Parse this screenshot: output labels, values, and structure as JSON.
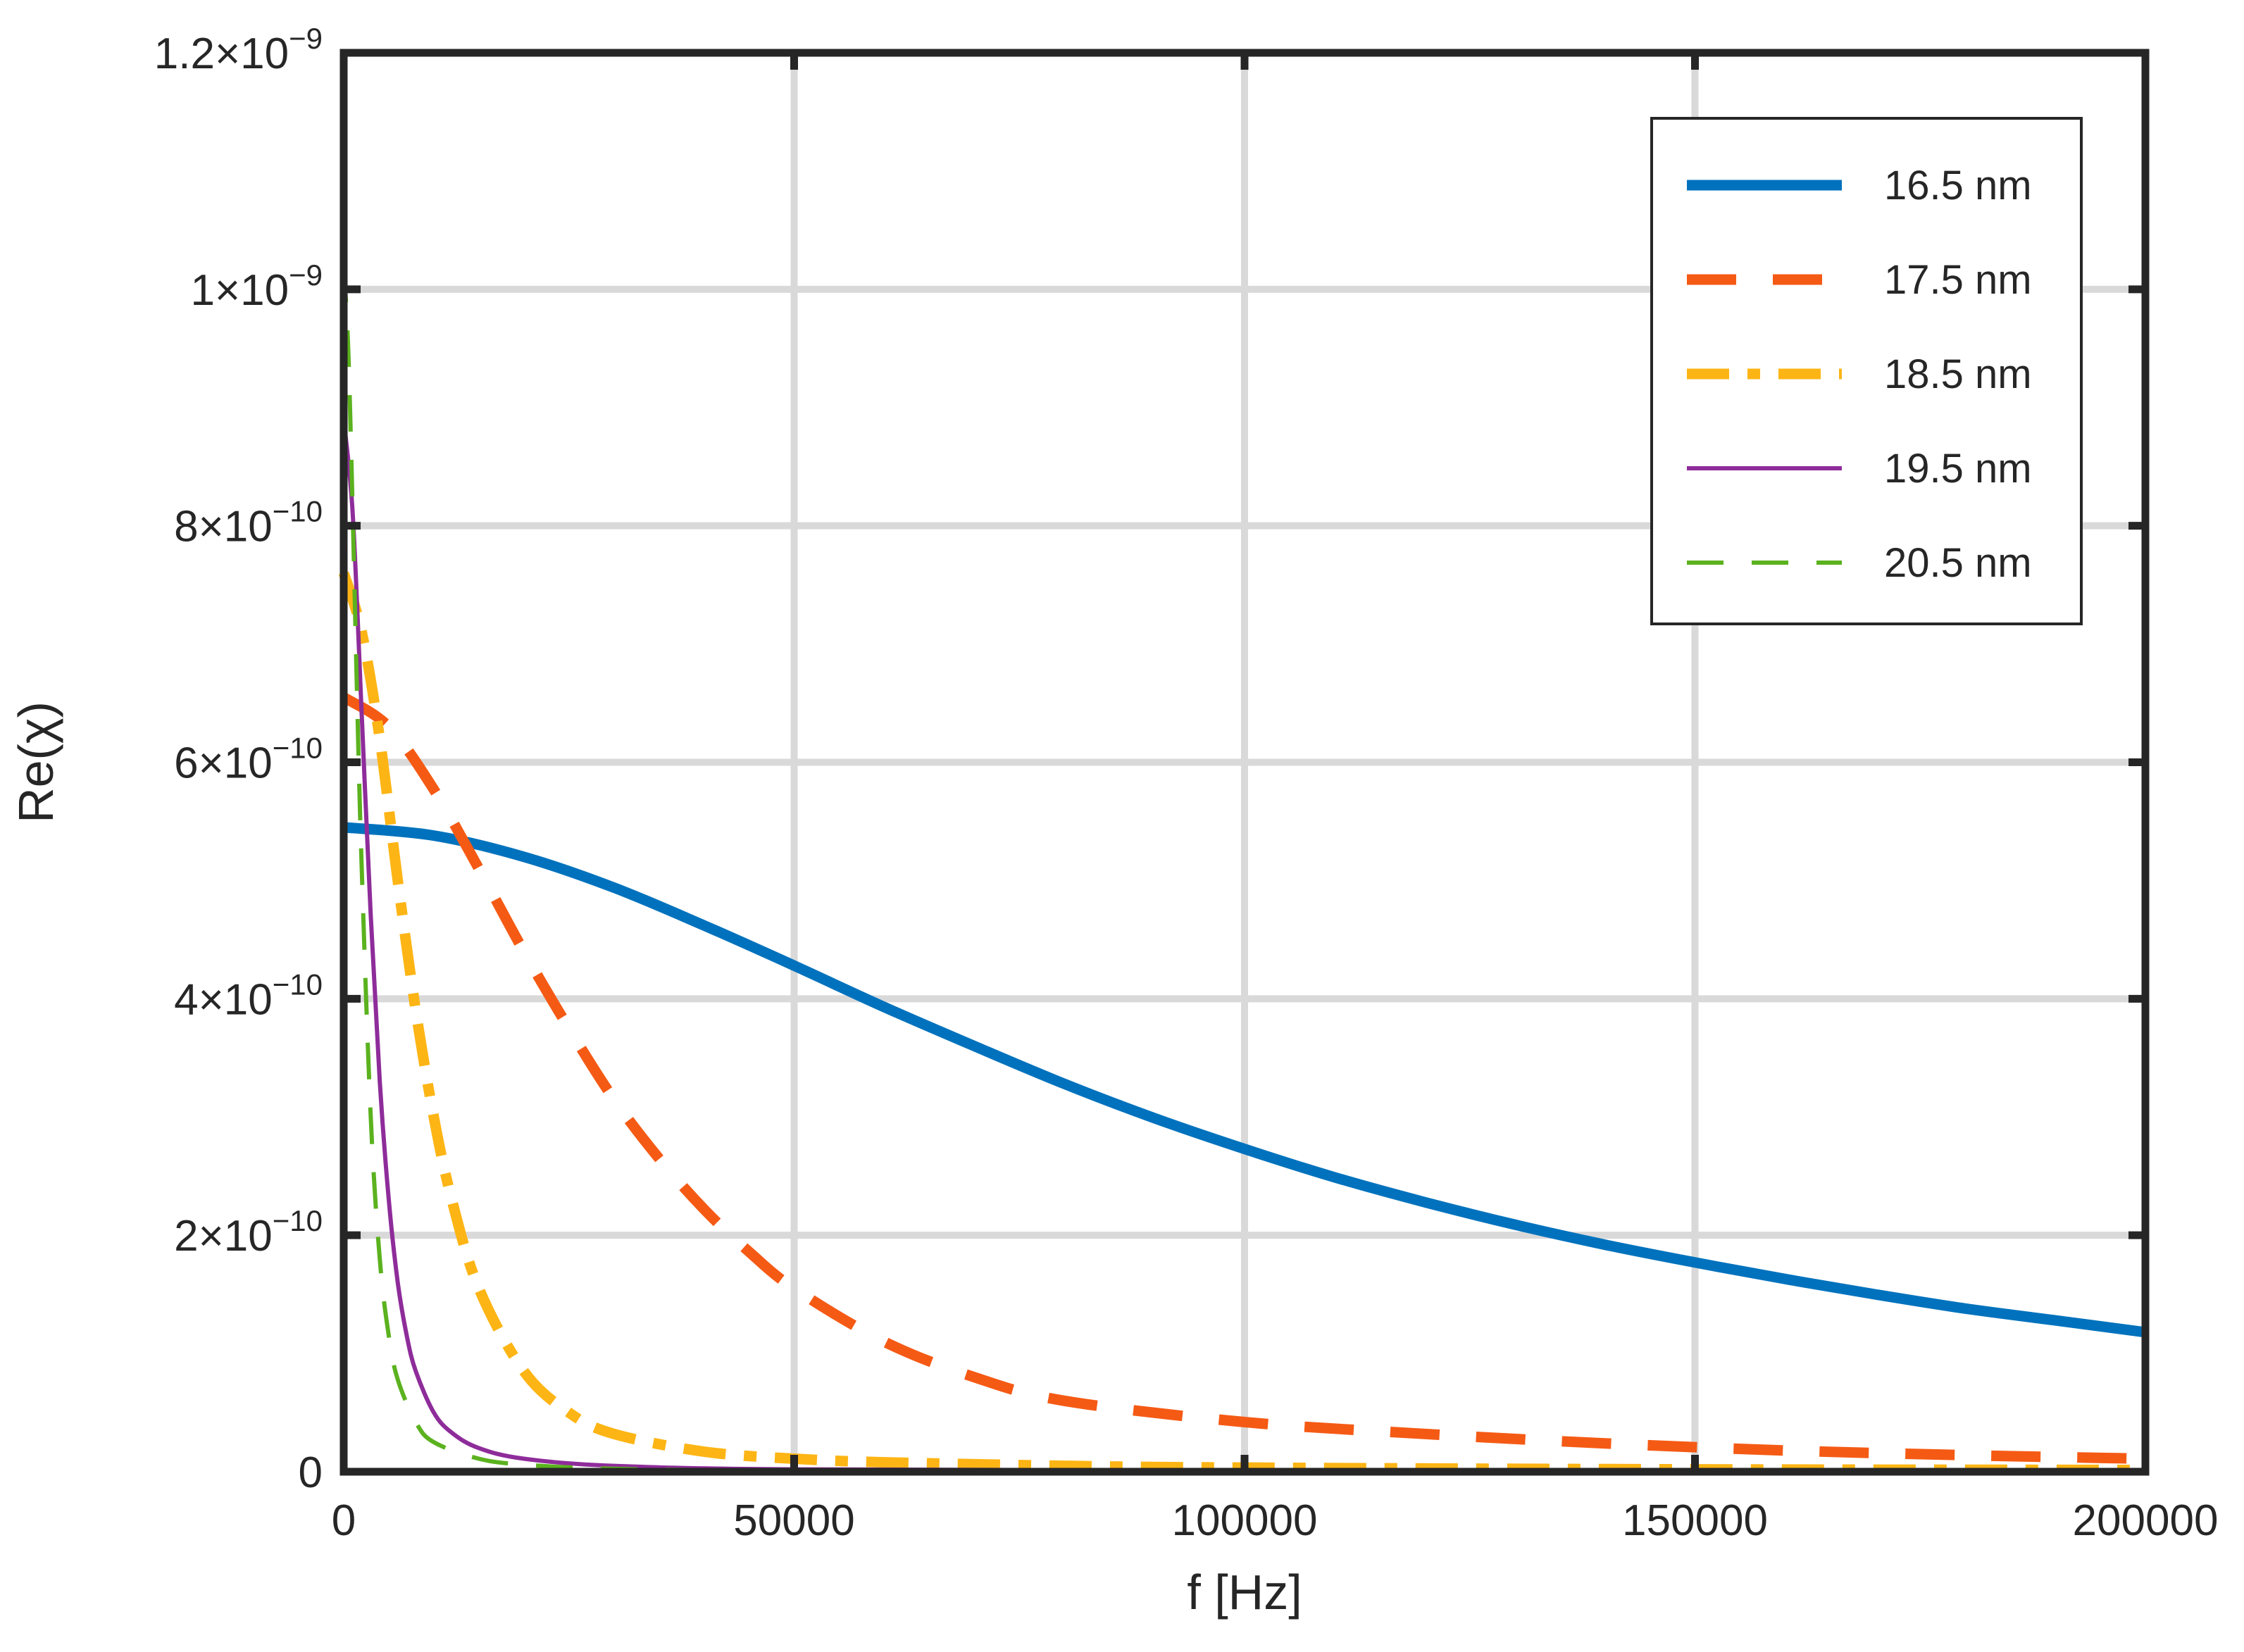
{
  "chart_data": {
    "type": "line",
    "title": "",
    "xlabel": "f [Hz]",
    "ylabel": "Re(χ)",
    "xlim": [
      0,
      200000
    ],
    "ylim": [
      0,
      1.2e-09
    ],
    "grid": true,
    "legend_position": "top-right",
    "x_ticks": [
      {
        "value": 0,
        "label": "0"
      },
      {
        "value": 50000,
        "label": "50000"
      },
      {
        "value": 100000,
        "label": "100000"
      },
      {
        "value": 150000,
        "label": "150000"
      },
      {
        "value": 200000,
        "label": "200000"
      }
    ],
    "y_ticks": [
      {
        "value": 0,
        "mantissa": "0",
        "exponent": ""
      },
      {
        "value": 2e-10,
        "mantissa": "2×10",
        "exponent": "−10"
      },
      {
        "value": 4e-10,
        "mantissa": "4×10",
        "exponent": "−10"
      },
      {
        "value": 6e-10,
        "mantissa": "6×10",
        "exponent": "−10"
      },
      {
        "value": 8e-10,
        "mantissa": "8×10",
        "exponent": "−10"
      },
      {
        "value": 1e-09,
        "mantissa": "1×10",
        "exponent": "−9"
      },
      {
        "value": 1.2e-09,
        "mantissa": "1.2×10",
        "exponent": "−9"
      }
    ],
    "series": [
      {
        "name": "16.5 nm",
        "color": "#0072BD",
        "dash": "solid",
        "weight": "thick",
        "x": [
          0,
          10000,
          20000,
          30000,
          40000,
          50000,
          60000,
          70000,
          80000,
          90000,
          100000,
          110000,
          120000,
          130000,
          140000,
          150000,
          160000,
          170000,
          180000,
          190000,
          200000
        ],
        "y": [
          5.45e-10,
          5.38e-10,
          5.2e-10,
          4.94e-10,
          4.62e-10,
          4.28e-10,
          3.93e-10,
          3.6e-10,
          3.28e-10,
          2.99e-10,
          2.73e-10,
          2.49e-10,
          2.28e-10,
          2.09e-10,
          1.92e-10,
          1.77e-10,
          1.63e-10,
          1.5e-10,
          1.38e-10,
          1.28e-10,
          1.18e-10
        ]
      },
      {
        "name": "17.5 nm",
        "color": "#F55A14",
        "dash": "dashed",
        "weight": "thick",
        "x": [
          0,
          5000,
          10000,
          15000,
          20000,
          25000,
          30000,
          35000,
          40000,
          45000,
          50000,
          60000,
          70000,
          80000,
          100000,
          120000,
          140000,
          160000,
          180000,
          200000
        ],
        "y": [
          6.55e-10,
          6.3e-10,
          5.77e-10,
          5.1e-10,
          4.4e-10,
          3.75e-10,
          3.15e-10,
          2.65e-10,
          2.22e-10,
          1.86e-10,
          1.55e-10,
          1.1e-10,
          8e-11,
          6e-11,
          4.2e-11,
          3.2e-11,
          2.4e-11,
          1.8e-11,
          1.4e-11,
          1.1e-11
        ]
      },
      {
        "name": "18.5 nm",
        "color": "#FDB515",
        "dash": "dashdot",
        "weight": "thick",
        "x": [
          0,
          2000,
          4000,
          6000,
          8000,
          10000,
          12000,
          15000,
          20000,
          25000,
          30000,
          40000,
          50000,
          60000,
          80000,
          100000,
          150000,
          200000
        ],
        "y": [
          7.6e-10,
          7.1e-10,
          6.2e-10,
          5e-10,
          3.9e-10,
          3e-10,
          2.3e-10,
          1.55e-10,
          8.5e-11,
          5e-11,
          3.2e-11,
          1.7e-11,
          1.1e-11,
          8e-12,
          5e-12,
          3.5e-12,
          2e-12,
          1.5e-12
        ]
      },
      {
        "name": "19.5 nm",
        "color": "#8E2C9A",
        "dash": "solid",
        "weight": "thin",
        "x": [
          0,
          1000,
          2000,
          3000,
          4000,
          5000,
          6000,
          7000,
          8000,
          10000,
          12000,
          15000,
          20000,
          30000,
          50000,
          100000,
          200000
        ],
        "y": [
          8.9e-10,
          8.1e-10,
          6.4e-10,
          4.7e-10,
          3.3e-10,
          2.3e-10,
          1.6e-10,
          1.15e-10,
          8.5e-11,
          5e-11,
          3.3e-11,
          2e-11,
          1.1e-11,
          5e-12,
          2e-12,
          1e-12,
          5e-13
        ]
      },
      {
        "name": "20.5 nm",
        "color": "#5BB21E",
        "dash": "dashed",
        "weight": "thin",
        "x": [
          0,
          500,
          1000,
          1500,
          2000,
          3000,
          4000,
          5000,
          6000,
          8000,
          10000,
          15000,
          20000,
          30000,
          50000,
          100000,
          200000
        ],
        "y": [
          1.02e-09,
          9.5e-10,
          8.1e-10,
          6.5e-10,
          5.1e-10,
          3e-10,
          1.8e-10,
          1.15e-10,
          7.8e-11,
          4.2e-11,
          2.5e-11,
          1.1e-11,
          6e-12,
          2.5e-12,
          1e-12,
          5e-13,
          2e-13
        ]
      }
    ]
  }
}
